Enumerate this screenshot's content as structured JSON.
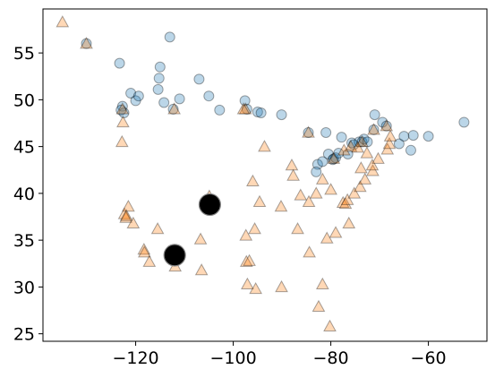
{
  "chart_data": {
    "type": "scatter",
    "title": "",
    "xlabel": "",
    "ylabel": "",
    "xlim": [
      -139,
      -48
    ],
    "ylim": [
      24.2,
      59.7
    ],
    "x_ticks": [
      -120,
      -100,
      -80,
      -60
    ],
    "x_tick_labels": [
      "−120",
      "−100",
      "−80",
      "−60"
    ],
    "y_ticks": [
      25,
      30,
      35,
      40,
      45,
      50,
      55
    ],
    "y_tick_labels": [
      "25",
      "30",
      "35",
      "40",
      "45",
      "50",
      "55"
    ],
    "grid": false,
    "legend": "none",
    "series": [
      {
        "marker": "circle",
        "color": "#1f77b4",
        "points": [
          [
            -130.1,
            56.0
          ],
          [
            -123.3,
            53.9
          ],
          [
            -122.7,
            49.3
          ],
          [
            -122.4,
            48.6
          ],
          [
            -123.0,
            48.9
          ],
          [
            -121.0,
            50.7
          ],
          [
            -120.0,
            49.9
          ],
          [
            -119.4,
            50.4
          ],
          [
            -115.0,
            53.5
          ],
          [
            -115.2,
            52.3
          ],
          [
            -115.4,
            51.1
          ],
          [
            -114.2,
            49.7
          ],
          [
            -112.3,
            49.0
          ],
          [
            -113.0,
            56.7
          ],
          [
            -111.0,
            50.1
          ],
          [
            -107.0,
            52.2
          ],
          [
            -105.0,
            50.4
          ],
          [
            -102.8,
            48.9
          ],
          [
            -97.6,
            49.9
          ],
          [
            -97.2,
            49.0
          ],
          [
            -95.0,
            48.7
          ],
          [
            -94.3,
            48.6
          ],
          [
            -90.1,
            48.4
          ],
          [
            -84.6,
            46.5
          ],
          [
            -82.7,
            43.1
          ],
          [
            -83.0,
            42.3
          ],
          [
            -81.0,
            46.5
          ],
          [
            -81.7,
            43.4
          ],
          [
            -80.5,
            44.2
          ],
          [
            -79.6,
            43.6
          ],
          [
            -79.4,
            43.7
          ],
          [
            -79.0,
            43.8
          ],
          [
            -78.4,
            44.3
          ],
          [
            -77.8,
            46.0
          ],
          [
            -76.5,
            44.2
          ],
          [
            -75.7,
            45.4
          ],
          [
            -75.3,
            45.2
          ],
          [
            -74.2,
            45.5
          ],
          [
            -73.6,
            45.5
          ],
          [
            -73.2,
            45.8
          ],
          [
            -72.5,
            45.5
          ],
          [
            -71.2,
            46.8
          ],
          [
            -71.0,
            48.4
          ],
          [
            -69.4,
            47.6
          ],
          [
            -68.6,
            47.2
          ],
          [
            -66.0,
            45.3
          ],
          [
            -65.0,
            46.1
          ],
          [
            -63.6,
            44.6
          ],
          [
            -63.1,
            46.2
          ],
          [
            -60.0,
            46.1
          ],
          [
            -52.7,
            47.6
          ]
        ]
      },
      {
        "marker": "triangle",
        "color": "#ff7f0e",
        "points": [
          [
            -135.0,
            58.3
          ],
          [
            -130.1,
            56.0
          ],
          [
            -122.7,
            49.0
          ],
          [
            -122.6,
            47.6
          ],
          [
            -122.8,
            45.5
          ],
          [
            -122.3,
            37.8
          ],
          [
            -122.0,
            37.4
          ],
          [
            -121.5,
            38.6
          ],
          [
            -120.5,
            36.8
          ],
          [
            -118.3,
            34.0
          ],
          [
            -118.2,
            33.7
          ],
          [
            -117.2,
            32.7
          ],
          [
            -115.5,
            36.2
          ],
          [
            -112.0,
            33.4
          ],
          [
            -111.9,
            32.2
          ],
          [
            -112.1,
            49.0
          ],
          [
            -106.7,
            35.1
          ],
          [
            -106.5,
            31.8
          ],
          [
            -104.9,
            39.7
          ],
          [
            -97.5,
            49.0
          ],
          [
            -97.4,
            35.5
          ],
          [
            -97.3,
            32.7
          ],
          [
            -96.7,
            32.8
          ],
          [
            -97.1,
            30.3
          ],
          [
            -96.0,
            41.3
          ],
          [
            -95.4,
            29.8
          ],
          [
            -95.6,
            36.2
          ],
          [
            -94.6,
            39.1
          ],
          [
            -93.6,
            45.0
          ],
          [
            -90.2,
            38.6
          ],
          [
            -90.1,
            30.0
          ],
          [
            -88.0,
            43.0
          ],
          [
            -87.7,
            41.9
          ],
          [
            -86.8,
            36.2
          ],
          [
            -86.2,
            39.8
          ],
          [
            -84.4,
            33.7
          ],
          [
            -84.5,
            39.1
          ],
          [
            -83.0,
            40.0
          ],
          [
            -82.5,
            27.9
          ],
          [
            -81.7,
            30.3
          ],
          [
            -81.7,
            41.5
          ],
          [
            -80.8,
            35.2
          ],
          [
            -80.2,
            25.8
          ],
          [
            -80.0,
            40.4
          ],
          [
            -79.0,
            35.8
          ],
          [
            -77.5,
            39.0
          ],
          [
            -77.0,
            38.9
          ],
          [
            -76.6,
            39.3
          ],
          [
            -76.3,
            36.8
          ],
          [
            -75.2,
            40.0
          ],
          [
            -74.0,
            40.7
          ],
          [
            -73.8,
            42.7
          ],
          [
            -73.0,
            41.5
          ],
          [
            -71.4,
            42.4
          ],
          [
            -71.5,
            43.0
          ],
          [
            -70.3,
            43.7
          ],
          [
            -72.6,
            44.3
          ],
          [
            -68.4,
            44.7
          ],
          [
            -68.0,
            45.3
          ],
          [
            -67.8,
            46.1
          ],
          [
            -68.6,
            47.2
          ],
          [
            -75.9,
            45.0
          ],
          [
            -73.6,
            45.5
          ],
          [
            -71.2,
            46.8
          ],
          [
            -79.4,
            43.7
          ],
          [
            -74.5,
            44.9
          ],
          [
            -77.3,
            44.6
          ],
          [
            -84.6,
            46.5
          ],
          [
            -97.9,
            49.0
          ],
          [
            -121.9,
            37.6
          ]
        ]
      },
      {
        "marker": "big-circle",
        "color": "#000000",
        "points": [
          [
            -104.8,
            38.8
          ],
          [
            -112.0,
            33.4
          ]
        ]
      }
    ]
  }
}
